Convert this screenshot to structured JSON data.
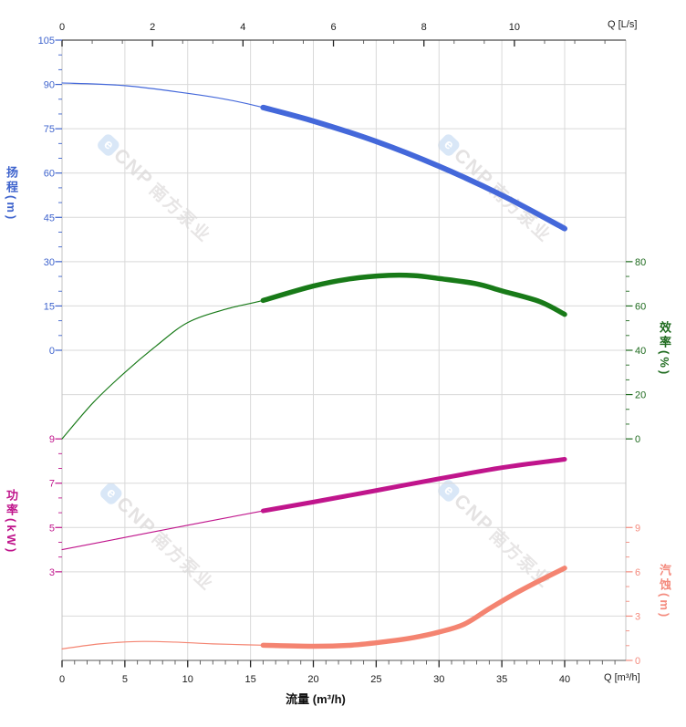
{
  "watermarks": {
    "logo_letter": "e",
    "brand": "CNP",
    "brand_cn": "南方泵业"
  },
  "chart_data": {
    "type": "line",
    "title": "",
    "x_axis_bottom": {
      "corner_label": "Q [m³/h]",
      "title": "流量 (m³/h)",
      "ticks": [
        0,
        5,
        10,
        15,
        20,
        25,
        30,
        35,
        40
      ],
      "minor_step": 1,
      "max": 44.8
    },
    "x_axis_top": {
      "corner_label": "Q [L/s]",
      "ticks": [
        0,
        2,
        4,
        6,
        8,
        10
      ],
      "minor_step": 0.6667,
      "max": 12.44,
      "to_bottom_factor": 3.6
    },
    "y_axes": [
      {
        "id": "head",
        "title": "扬程(m)",
        "side": "left",
        "color": "#3e63cd",
        "curve_color": "#4468da",
        "ticks": [
          105,
          90,
          75,
          60,
          45,
          30,
          15,
          0
        ],
        "minor_step": 5,
        "minor_range": [
          0,
          105
        ],
        "anchor_value": 105,
        "anchor_row": 0,
        "units_per_row": 15
      },
      {
        "id": "eff",
        "title": "效率(%)",
        "side": "right",
        "color": "#1f6b1f",
        "curve_color": "#187a18",
        "ticks": [
          80,
          60,
          40,
          20,
          0
        ],
        "minor_step": 6.6667,
        "minor_range": [
          0,
          80
        ],
        "anchor_value": 80,
        "anchor_row": 5,
        "units_per_row": 20
      },
      {
        "id": "power",
        "title": "功率(kW)",
        "side": "left",
        "color": "#c0158c",
        "curve_color": "#c0158c",
        "ticks": [
          9,
          7,
          5,
          3
        ],
        "minor_step": 0.6667,
        "minor_range": [
          3,
          9
        ],
        "anchor_value": 9,
        "anchor_row": 9,
        "units_per_row": 2
      },
      {
        "id": "npsh",
        "title": "汽蚀(m)",
        "side": "right",
        "color": "#f48b7e",
        "curve_color": "#f48471",
        "ticks": [
          9,
          6,
          3,
          0
        ],
        "minor_step": 1,
        "minor_range": [
          0,
          9
        ],
        "anchor_value": 9,
        "anchor_row": 11,
        "units_per_row": 3
      }
    ],
    "series": [
      {
        "id": "head-curve",
        "axis": "head",
        "rated_split": 16,
        "points": [
          [
            0,
            90.5
          ],
          [
            5,
            89.6
          ],
          [
            10,
            87.0
          ],
          [
            13,
            85.0
          ],
          [
            16,
            82.2
          ],
          [
            20,
            77.6
          ],
          [
            25,
            70.7
          ],
          [
            30,
            62.3
          ],
          [
            35,
            52.5
          ],
          [
            40,
            41.2
          ]
        ]
      },
      {
        "id": "efficiency-curve",
        "axis": "eff",
        "rated_split": 16,
        "points": [
          [
            0,
            0
          ],
          [
            2.5,
            16.5
          ],
          [
            5,
            30
          ],
          [
            7.5,
            42
          ],
          [
            10,
            52.5
          ],
          [
            13,
            58.5
          ],
          [
            16,
            62.5
          ],
          [
            20,
            69
          ],
          [
            23,
            72.3
          ],
          [
            26,
            73.8
          ],
          [
            28,
            73.7
          ],
          [
            30,
            72.4
          ],
          [
            33,
            70
          ],
          [
            35,
            66.8
          ],
          [
            38,
            62
          ],
          [
            40,
            56.2
          ]
        ]
      },
      {
        "id": "power-curve",
        "axis": "power",
        "rated_split": 16,
        "points": [
          [
            0,
            4.0
          ],
          [
            5,
            4.55
          ],
          [
            10,
            5.1
          ],
          [
            16,
            5.75
          ],
          [
            20,
            6.15
          ],
          [
            25,
            6.67
          ],
          [
            30,
            7.2
          ],
          [
            35,
            7.7
          ],
          [
            40,
            8.08
          ]
        ]
      },
      {
        "id": "npsh-curve",
        "axis": "npsh",
        "rated_split": 16,
        "points": [
          [
            0,
            0.78
          ],
          [
            3,
            1.12
          ],
          [
            6,
            1.28
          ],
          [
            9,
            1.24
          ],
          [
            12,
            1.12
          ],
          [
            16,
            1.03
          ],
          [
            20,
            0.96
          ],
          [
            23,
            1.03
          ],
          [
            26,
            1.3
          ],
          [
            28,
            1.55
          ],
          [
            30,
            1.92
          ],
          [
            32,
            2.45
          ],
          [
            34,
            3.5
          ],
          [
            36,
            4.5
          ],
          [
            38,
            5.4
          ],
          [
            40,
            6.25
          ]
        ]
      }
    ]
  }
}
